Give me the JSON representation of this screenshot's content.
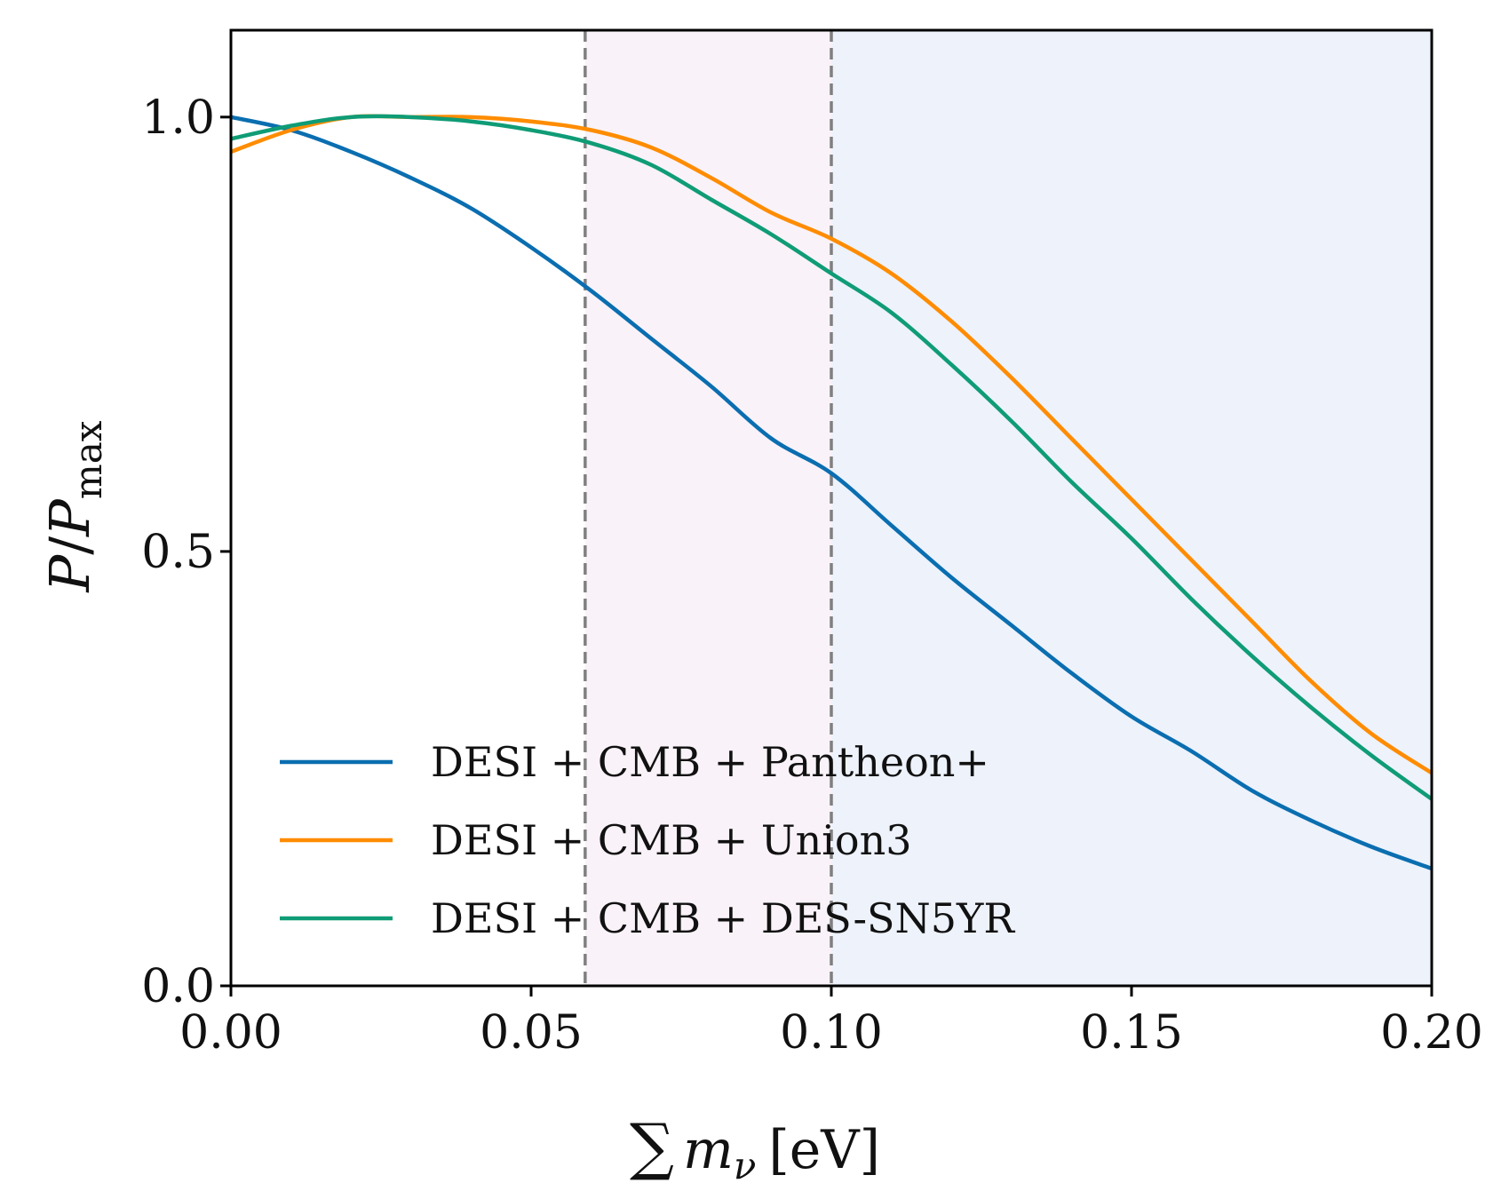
{
  "chart_data": {
    "type": "line",
    "title": "",
    "xlabel_parts": {
      "sum": "∑",
      "m": "m",
      "sub": "ν",
      "unit": "[eV]"
    },
    "ylabel_parts": {
      "p1": "P",
      "slash": "/",
      "p2": "P",
      "sub": "max"
    },
    "xlim": [
      0.0,
      0.2
    ],
    "ylim": [
      0.0,
      1.1
    ],
    "xticks": [
      0.0,
      0.05,
      0.1,
      0.15,
      0.2
    ],
    "xtick_labels": [
      "0.00",
      "0.05",
      "0.10",
      "0.15",
      "0.20"
    ],
    "yticks": [
      0.0,
      0.5,
      1.0
    ],
    "ytick_labels": [
      "0.0",
      "0.5",
      "1.0"
    ],
    "grid": false,
    "legend_position": "lower-left",
    "shaded_regions": [
      {
        "x_start": 0.059,
        "x_end": 0.1,
        "color": "#f9f2f8"
      },
      {
        "x_start": 0.1,
        "x_end": 0.2,
        "color": "#edf2fb"
      }
    ],
    "vlines": [
      {
        "x": 0.059,
        "color": "#808080",
        "style": "dashed"
      },
      {
        "x": 0.1,
        "color": "#808080",
        "style": "dashed"
      }
    ],
    "x": [
      0.0,
      0.01,
      0.02,
      0.03,
      0.04,
      0.05,
      0.06,
      0.07,
      0.08,
      0.09,
      0.1,
      0.11,
      0.12,
      0.13,
      0.14,
      0.15,
      0.16,
      0.17,
      0.18,
      0.19,
      0.2
    ],
    "series": [
      {
        "name": "DESI + CMB + Pantheon+",
        "color": "#0a6eb0",
        "values": [
          1.0,
          0.985,
          0.96,
          0.93,
          0.895,
          0.85,
          0.8,
          0.745,
          0.69,
          0.63,
          0.59,
          0.53,
          0.47,
          0.415,
          0.36,
          0.31,
          0.27,
          0.225,
          0.19,
          0.16,
          0.135
        ]
      },
      {
        "name": "DESI + CMB + Union3",
        "color": "#ff8c00",
        "values": [
          0.96,
          0.985,
          1.0,
          1.0,
          1.0,
          0.995,
          0.985,
          0.965,
          0.93,
          0.89,
          0.86,
          0.82,
          0.765,
          0.7,
          0.63,
          0.56,
          0.49,
          0.42,
          0.35,
          0.29,
          0.245
        ]
      },
      {
        "name": "DESI + CMB + DES-SN5YR",
        "color": "#0f9c76",
        "values": [
          0.975,
          0.99,
          1.0,
          1.0,
          0.995,
          0.985,
          0.97,
          0.945,
          0.905,
          0.865,
          0.82,
          0.775,
          0.715,
          0.65,
          0.58,
          0.515,
          0.445,
          0.38,
          0.32,
          0.265,
          0.215
        ]
      }
    ]
  }
}
